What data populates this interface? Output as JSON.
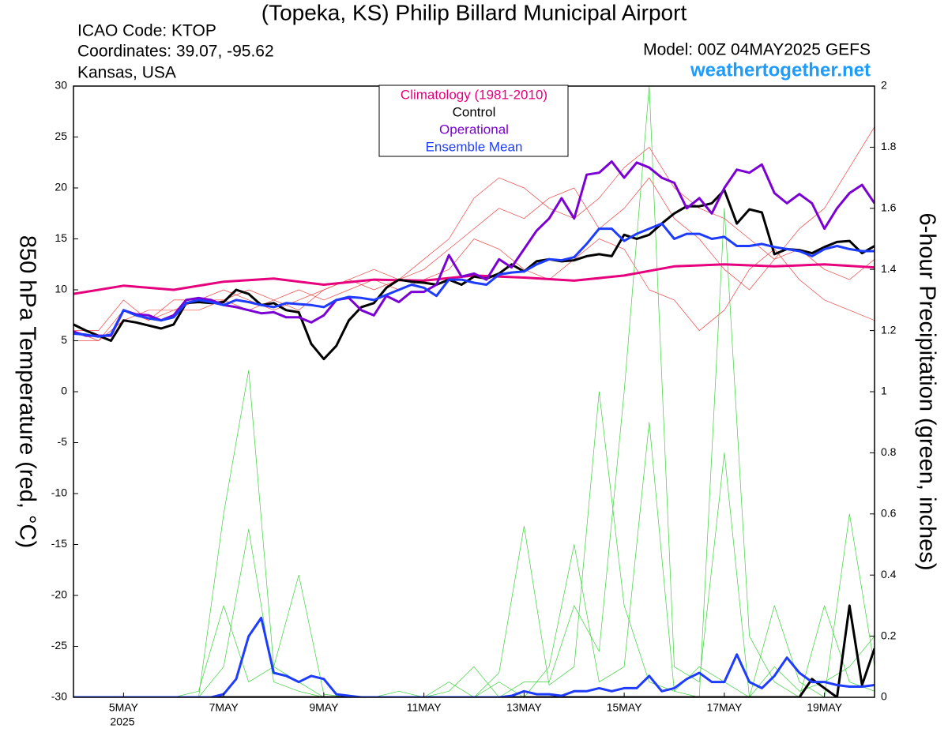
{
  "chart_data": {
    "type": "line",
    "title": "(Topeka, KS) Philip Billard Municipal Airport",
    "header_lines": [
      "ICAO Code: KTOP",
      "Coordinates: 39.07, -95.62",
      "Kansas, USA"
    ],
    "model": "Model: 00Z 04MAY2025 GEFS",
    "site": "weathertogether.net",
    "y_label": "850 hPa Temperature (red, °C)",
    "y2_label": "6-hour Precipitation (green, inches)",
    "x_year_label": "2025",
    "xlim": [
      0,
      384
    ],
    "xticks": [
      {
        "value": 24,
        "label": "5MAY"
      },
      {
        "value": 72,
        "label": "7MAY"
      },
      {
        "value": 120,
        "label": "9MAY"
      },
      {
        "value": 168,
        "label": "11MAY"
      },
      {
        "value": 216,
        "label": "13MAY"
      },
      {
        "value": 264,
        "label": "15MAY"
      },
      {
        "value": 312,
        "label": "17MAY"
      },
      {
        "value": 360,
        "label": "19MAY"
      }
    ],
    "ylim": [
      -30,
      30
    ],
    "yticks": [
      30,
      25,
      20,
      15,
      10,
      5,
      0,
      -5,
      -10,
      -15,
      -20,
      -25,
      -30
    ],
    "y2lim": [
      0,
      2
    ],
    "y2ticks": [
      2,
      1.8,
      1.6,
      1.4,
      1.2,
      1,
      0.8,
      0.6,
      0.4,
      0.2,
      0
    ],
    "x": [
      0,
      6,
      12,
      18,
      24,
      30,
      36,
      42,
      48,
      54,
      60,
      66,
      72,
      78,
      84,
      90,
      96,
      102,
      108,
      114,
      120,
      126,
      132,
      138,
      144,
      150,
      156,
      162,
      168,
      174,
      180,
      186,
      192,
      198,
      204,
      210,
      216,
      222,
      228,
      234,
      240,
      246,
      252,
      258,
      264,
      270,
      276,
      282,
      288,
      294,
      300,
      306,
      312,
      318,
      324,
      330,
      336,
      342,
      348,
      354,
      360,
      366,
      372,
      378,
      384
    ],
    "series": [
      {
        "color": "#f04646",
        "x": [
          0,
          12,
          24,
          36,
          48,
          60,
          72,
          84,
          96,
          108,
          120,
          132,
          144,
          156,
          168,
          180,
          192,
          204,
          216,
          228,
          240,
          252,
          264,
          276,
          288,
          300,
          312,
          324,
          336,
          348,
          360,
          372,
          384
        ],
        "values": [
          6,
          5,
          8,
          7,
          9,
          9,
          10,
          9,
          8,
          9,
          10,
          11,
          10,
          11,
          12,
          14,
          16,
          18,
          17,
          19,
          20,
          16,
          18,
          21,
          17,
          15,
          12,
          10,
          13,
          16,
          18,
          22,
          26
        ]
      },
      {
        "color": "#f04646",
        "x": [
          0,
          12,
          24,
          36,
          48,
          60,
          72,
          84,
          96,
          108,
          120,
          132,
          144,
          156,
          168,
          180,
          192,
          204,
          216,
          228,
          240,
          252,
          264,
          276,
          288,
          300,
          312,
          324,
          336,
          348,
          360,
          372,
          384
        ],
        "values": [
          5,
          5,
          7,
          8,
          8,
          9,
          9,
          8,
          9,
          10,
          9,
          10,
          11,
          10,
          11,
          12,
          15,
          14,
          12,
          11,
          13,
          15,
          14,
          10,
          9,
          6,
          8,
          12,
          14,
          11,
          9,
          8,
          7
        ]
      },
      {
        "color": "#f04646",
        "x": [
          0,
          12,
          24,
          36,
          48,
          60,
          72,
          84,
          96,
          108,
          120,
          132,
          144,
          156,
          168,
          180,
          192,
          204,
          216,
          228,
          240,
          252,
          264,
          276,
          288,
          300,
          312,
          324,
          336,
          348,
          360,
          372,
          384
        ],
        "values": [
          6,
          6,
          9,
          7,
          8,
          8,
          9,
          10,
          9,
          8,
          10,
          11,
          12,
          11,
          13,
          15,
          19,
          21,
          20,
          18,
          17,
          19,
          22,
          24,
          20,
          18,
          17,
          15,
          13,
          14,
          12,
          11,
          13
        ]
      },
      {
        "color": "#3cd23c",
        "axis": "y2",
        "x": [
          0,
          12,
          24,
          36,
          48,
          60,
          72,
          84,
          96,
          108,
          120,
          132,
          144,
          156,
          168,
          180,
          192,
          204,
          216,
          228,
          240,
          252,
          264,
          276,
          288,
          300,
          312,
          324,
          336,
          348,
          360,
          372,
          384
        ],
        "values": [
          0,
          0,
          0,
          0,
          0,
          0,
          0.1,
          0.55,
          0.05,
          0.02,
          0,
          0,
          0,
          0,
          0,
          0,
          0,
          0.05,
          0,
          0.1,
          0.5,
          0.05,
          0.1,
          0.9,
          0.02,
          0.1,
          0.05,
          0,
          0.3,
          0.05,
          0,
          0.6,
          0.1
        ]
      },
      {
        "color": "#3cd23c",
        "axis": "y2",
        "x": [
          0,
          12,
          24,
          36,
          48,
          60,
          72,
          84,
          96,
          108,
          120,
          132,
          144,
          156,
          168,
          180,
          192,
          204,
          216,
          228,
          240,
          252,
          264,
          276,
          288,
          300,
          312,
          324,
          336,
          348,
          360,
          372,
          384
        ],
        "values": [
          0,
          0,
          0,
          0,
          0,
          0.02,
          0.3,
          0.05,
          0.1,
          0.4,
          0.01,
          0,
          0,
          0,
          0,
          0.02,
          0.1,
          0,
          0.05,
          0.05,
          0.3,
          0.15,
          1.0,
          2.0,
          0.1,
          0.05,
          0.8,
          0,
          0.1,
          0.02,
          0.05,
          0.1,
          0.2
        ]
      },
      {
        "color": "#3cd23c",
        "axis": "y2",
        "x": [
          0,
          12,
          24,
          36,
          48,
          60,
          72,
          84,
          96,
          108,
          120,
          132,
          144,
          156,
          168,
          180,
          192,
          204,
          216,
          228,
          240,
          252,
          264,
          276,
          288,
          300,
          312,
          324,
          336,
          348,
          360,
          372,
          384
        ],
        "values": [
          0,
          0,
          0,
          0,
          0,
          0,
          0.6,
          1.07,
          0.1,
          0.05,
          0,
          0,
          0,
          0.02,
          0,
          0.05,
          0,
          0.08,
          0.56,
          0.04,
          0.1,
          1.0,
          0.3,
          0.05,
          0.02,
          0,
          1.6,
          0.2,
          0.05,
          0,
          0.3,
          0.05,
          0.02
        ]
      },
      {
        "name": "Climatology (1981-2010)",
        "color": "#e6007e",
        "width": 3,
        "x": [
          0,
          24,
          48,
          72,
          96,
          120,
          144,
          168,
          192,
          216,
          240,
          264,
          288,
          312,
          336,
          360,
          384
        ],
        "values": [
          9.6,
          10.4,
          10.0,
          10.8,
          11.1,
          10.5,
          11.0,
          10.9,
          11.4,
          11.2,
          10.9,
          11.4,
          12.3,
          12.5,
          12.3,
          12.5,
          12.2
        ]
      },
      {
        "name": "Control",
        "color": "#000000",
        "width": 3,
        "values": [
          6.6,
          6,
          5.5,
          5,
          7,
          6.8,
          6.5,
          6.2,
          6.6,
          8.7,
          8.8,
          8.7,
          8.8,
          10,
          9.6,
          8.5,
          8.7,
          8,
          7.8,
          4.7,
          3.2,
          4.5,
          7,
          8.3,
          8.7,
          10.2,
          11,
          10.8,
          10.7,
          10.5,
          11,
          10.5,
          11.3,
          11.1,
          11.6,
          12.5,
          11.8,
          12.8,
          13,
          12.8,
          12.9,
          13.3,
          13.5,
          13.3,
          15.4,
          15,
          15.4,
          16.5,
          17.5,
          18.2,
          18.2,
          18.5,
          19.8,
          16.5,
          17.9,
          17.6,
          13.5,
          14,
          13.9,
          13.6,
          14.2,
          14.7,
          14.8,
          13.6,
          14.3
        ]
      },
      {
        "name": "Operational",
        "color": "#7b00d4",
        "width": 3,
        "values": [
          5.9,
          5.5,
          5.5,
          5.5,
          8,
          7.6,
          7.5,
          7,
          7.5,
          9,
          9.2,
          9,
          8.5,
          8.3,
          8,
          7.7,
          7.8,
          7.3,
          7.3,
          6.8,
          7.5,
          9,
          9.2,
          8,
          7.5,
          9.4,
          8.8,
          9.8,
          9.8,
          10.5,
          13.4,
          11.3,
          11.6,
          11,
          13,
          12.2,
          14,
          15.8,
          17,
          19,
          17,
          21.3,
          21.5,
          22.6,
          21,
          22.5,
          22,
          21,
          20.5,
          18,
          19,
          17.5,
          20,
          21.8,
          21.5,
          22.3,
          19.5,
          18.5,
          19.4,
          18.5,
          16,
          18,
          19.5,
          20.3,
          18.5
        ]
      },
      {
        "name": "Ensemble Mean",
        "color": "#1e3cff",
        "width": 3,
        "values": [
          5.7,
          5.6,
          5.4,
          5.6,
          8,
          7.5,
          7.2,
          7,
          7.3,
          8.7,
          9,
          8.8,
          8.5,
          9,
          8.8,
          8.5,
          8.3,
          8.7,
          8.6,
          8.5,
          8.3,
          9,
          9.3,
          9.2,
          9,
          9.5,
          10,
          10.5,
          10.2,
          9.4,
          11,
          11,
          10.7,
          10.5,
          11.5,
          11.7,
          11.8,
          12.5,
          13,
          12.9,
          13.2,
          14.5,
          16,
          16,
          14.8,
          15.5,
          16,
          16.5,
          15,
          15.5,
          15.5,
          15,
          15.2,
          14.3,
          14.3,
          14.5,
          14.2,
          14,
          13.8,
          13.3,
          14,
          14.3,
          14,
          13.8,
          13.8
        ]
      },
      {
        "color": "#000000",
        "axis": "y2",
        "width": 3,
        "values": [
          0,
          0,
          0,
          0,
          0,
          0,
          0,
          0,
          0,
          0,
          0,
          0,
          0,
          0,
          0,
          0,
          0,
          0,
          0,
          0,
          0,
          0,
          0,
          0,
          0,
          0,
          0,
          0,
          0,
          0,
          0,
          0,
          0,
          0,
          0,
          0,
          0,
          0,
          0,
          0,
          0,
          0,
          0,
          0,
          0,
          0,
          0,
          0,
          0,
          0,
          0,
          0,
          0,
          0,
          0,
          0,
          0,
          0,
          0,
          0.06,
          0.03,
          0,
          0.3,
          0.04,
          0.16
        ]
      },
      {
        "color": "#1e3cff",
        "axis": "y2",
        "width": 3,
        "values": [
          0,
          0,
          0,
          0,
          0,
          0,
          0,
          0,
          0,
          0,
          0,
          0,
          0.01,
          0.06,
          0.2,
          0.26,
          0.08,
          0.07,
          0.05,
          0.07,
          0.06,
          0.01,
          0.005,
          0,
          0,
          0,
          0,
          0,
          0,
          0,
          0,
          0,
          0,
          0,
          0,
          0.005,
          0.02,
          0.01,
          0.01,
          0.005,
          0.02,
          0.02,
          0.03,
          0.02,
          0.03,
          0.03,
          0.07,
          0.02,
          0.03,
          0.06,
          0.08,
          0.05,
          0.05,
          0.14,
          0.05,
          0.03,
          0.07,
          0.13,
          0.08,
          0.05,
          0.05,
          0.04,
          0.035,
          0.035,
          0.04
        ]
      }
    ]
  }
}
